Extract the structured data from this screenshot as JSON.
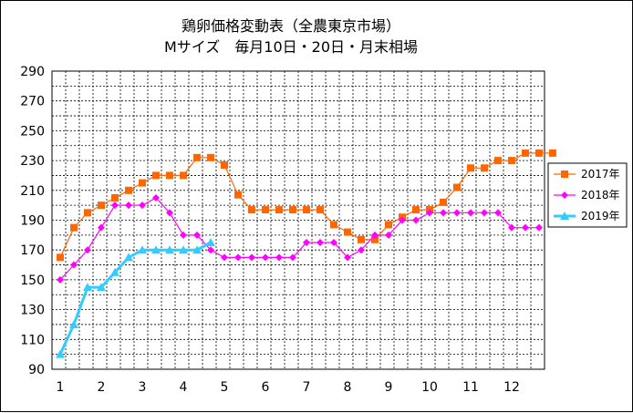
{
  "chart_data": {
    "type": "line",
    "title": [
      "鶏卵価格変動表（全農東京市場）",
      "Mサイズ　毎月10日・20日・月末相場"
    ],
    "xlabel": "",
    "ylabel": "",
    "x_tick_labels": [
      "1",
      "2",
      "3",
      "4",
      "5",
      "6",
      "7",
      "8",
      "9",
      "10",
      "11",
      "12"
    ],
    "ylim": [
      90,
      290
    ],
    "y_ticks": [
      90,
      110,
      130,
      150,
      170,
      190,
      210,
      230,
      250,
      270,
      290
    ],
    "y_tick_labels": [
      "90",
      "110",
      "130",
      "150",
      "170",
      "190",
      "210",
      "230",
      "250",
      "270",
      "290"
    ],
    "grid": true,
    "legend_position": "right",
    "series": [
      {
        "name": "2017年",
        "color": "#ff6600",
        "marker": "square",
        "values": [
          165,
          185,
          195,
          200,
          205,
          210,
          215,
          220,
          220,
          220,
          232,
          232,
          227,
          207,
          197,
          197,
          197,
          197,
          197,
          197,
          187,
          182,
          177,
          177,
          187,
          192,
          197,
          197,
          202,
          212,
          225,
          225,
          230,
          230,
          235,
          235,
          235
        ]
      },
      {
        "name": "2018年",
        "color": "#ff00ff",
        "marker": "diamond",
        "values": [
          150,
          160,
          170,
          185,
          200,
          200,
          200,
          205,
          195,
          180,
          180,
          170,
          165,
          165,
          165,
          165,
          165,
          165,
          175,
          175,
          175,
          165,
          170,
          180,
          180,
          190,
          190,
          195,
          195,
          195,
          195,
          195,
          195,
          185,
          185,
          185
        ]
      },
      {
        "name": "2019年",
        "color": "#33ccff",
        "marker": "triangle",
        "values": [
          100,
          120,
          145,
          145,
          155,
          165,
          170,
          170,
          170,
          170,
          170,
          175
        ]
      }
    ]
  }
}
